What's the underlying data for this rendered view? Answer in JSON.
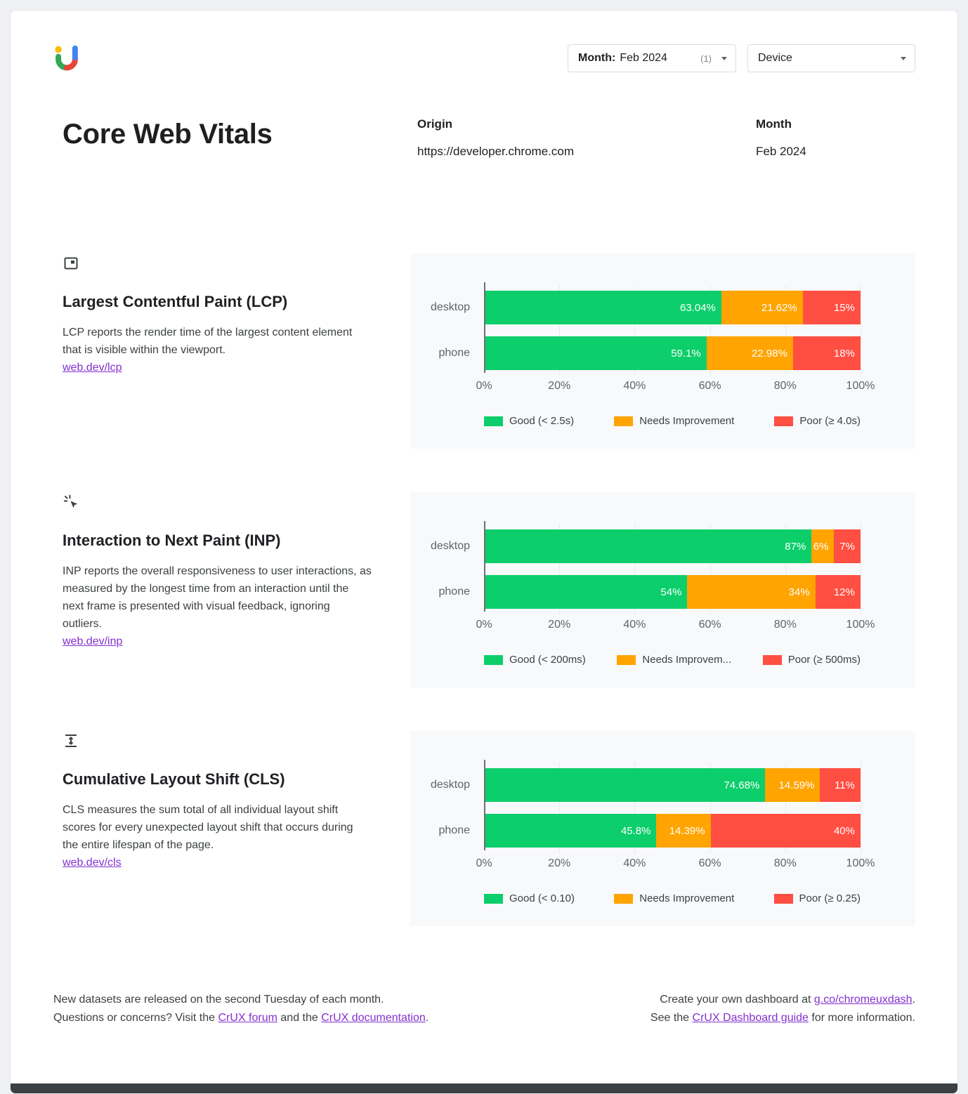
{
  "colors": {
    "good": "#0CCE6B",
    "needs_improvement": "#FFA400",
    "poor": "#FF4E42",
    "link": "#8430CE"
  },
  "header": {
    "month_filter": {
      "label": "Month:",
      "value": "Feb 2024",
      "count": "(1)"
    },
    "device_filter": {
      "label": "Device"
    }
  },
  "page": {
    "title": "Core Web Vitals"
  },
  "meta": {
    "origin_label": "Origin",
    "origin_value": "https://developer.chrome.com",
    "month_label": "Month",
    "month_value": "Feb 2024"
  },
  "sections": [
    {
      "icon": "lcp-frame-icon",
      "heading": "Largest Contentful Paint (LCP)",
      "description": "LCP reports the render time of the largest content element that is visible within the viewport.",
      "link": "web.dev/lcp"
    },
    {
      "icon": "inp-cursor-icon",
      "heading": "Interaction to Next Paint (INP)",
      "description": "INP reports the overall responsiveness to user interactions, as measured by the longest time from an interaction until the next frame is presented with visual feedback, ignoring outliers.",
      "link": "web.dev/inp"
    },
    {
      "icon": "cls-layout-shift-icon",
      "heading": "Cumulative Layout Shift (CLS)",
      "description": "CLS measures the sum total of all individual layout shift scores for every unexpected layout shift that occurs during the entire lifespan of the page.",
      "link": "web.dev/cls"
    }
  ],
  "chart_data": [
    {
      "type": "bar",
      "stacked": true,
      "orientation": "horizontal",
      "metric": "LCP",
      "categories": [
        "desktop",
        "phone"
      ],
      "x_ticks": [
        "0%",
        "20%",
        "40%",
        "60%",
        "80%",
        "100%"
      ],
      "xlim": [
        0,
        100
      ],
      "grid": true,
      "legend_position": "bottom",
      "series": [
        {
          "name": "Good (< 2.5s)",
          "color": "#0CCE6B",
          "values": [
            63.04,
            59.1
          ],
          "labels": [
            "63.04%",
            "59.1%"
          ]
        },
        {
          "name": "Needs Improvement",
          "color": "#FFA400",
          "values": [
            21.62,
            22.98
          ],
          "labels": [
            "21.62%",
            "22.98%"
          ]
        },
        {
          "name": "Poor (≥ 4.0s)",
          "color": "#FF4E42",
          "values": [
            15.34,
            17.92
          ],
          "labels": [
            "15%",
            "18%"
          ]
        }
      ]
    },
    {
      "type": "bar",
      "stacked": true,
      "orientation": "horizontal",
      "metric": "INP",
      "categories": [
        "desktop",
        "phone"
      ],
      "x_ticks": [
        "0%",
        "20%",
        "40%",
        "60%",
        "80%",
        "100%"
      ],
      "xlim": [
        0,
        100
      ],
      "grid": true,
      "legend_position": "bottom",
      "series": [
        {
          "name": "Good (< 200ms)",
          "color": "#0CCE6B",
          "values": [
            87,
            54
          ],
          "labels": [
            "87%",
            "54%"
          ]
        },
        {
          "name": "Needs Improvem...",
          "color": "#FFA400",
          "values": [
            6,
            34
          ],
          "labels": [
            "6%",
            "34%"
          ]
        },
        {
          "name": "Poor (≥ 500ms)",
          "color": "#FF4E42",
          "values": [
            7,
            12
          ],
          "labels": [
            "7%",
            "12%"
          ]
        }
      ]
    },
    {
      "type": "bar",
      "stacked": true,
      "orientation": "horizontal",
      "metric": "CLS",
      "categories": [
        "desktop",
        "phone"
      ],
      "x_ticks": [
        "0%",
        "20%",
        "40%",
        "60%",
        "80%",
        "100%"
      ],
      "xlim": [
        0,
        100
      ],
      "grid": true,
      "legend_position": "bottom",
      "series": [
        {
          "name": "Good (< 0.10)",
          "color": "#0CCE6B",
          "values": [
            74.68,
            45.8
          ],
          "labels": [
            "74.68%",
            "45.8%"
          ]
        },
        {
          "name": "Needs Improvement",
          "color": "#FFA400",
          "values": [
            14.59,
            14.39
          ],
          "labels": [
            "14.59%",
            "14.39%"
          ]
        },
        {
          "name": "Poor (≥ 0.25)",
          "color": "#FF4E42",
          "values": [
            10.73,
            39.81
          ],
          "labels": [
            "11%",
            "40%"
          ]
        }
      ]
    }
  ],
  "footer": {
    "line1": "New datasets are released on the second Tuesday of each month.",
    "line2_prefix": "Questions or concerns? Visit the ",
    "link_forum": "CrUX forum",
    "line2_mid": " and the ",
    "link_docs": "CrUX documentation",
    "line2_suffix": ".",
    "right1_prefix": "Create your own dashboard at ",
    "link_dash": "g.co/chromeuxdash",
    "right1_suffix": ".",
    "right2_prefix": "See the ",
    "link_guide": "CrUX Dashboard guide",
    "right2_suffix": " for more information."
  }
}
